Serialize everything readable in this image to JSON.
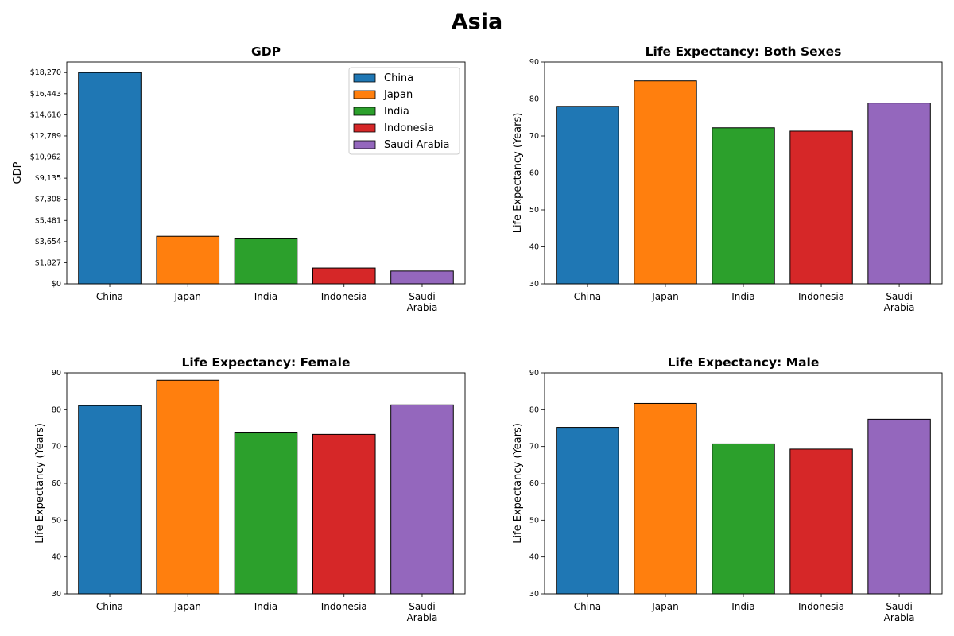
{
  "figure_title": "Asia",
  "colors": [
    "#1f77b4",
    "#ff7f0e",
    "#2ca02c",
    "#d62728",
    "#9467bd"
  ],
  "chart_data": [
    {
      "type": "bar",
      "title": "GDP",
      "xlabel": "",
      "ylabel": "GDP",
      "categories": [
        "China",
        "Japan",
        "India",
        "Indonesia",
        "Saudi Arabia"
      ],
      "category_labels": [
        [
          "China"
        ],
        [
          "Japan"
        ],
        [
          "India"
        ],
        [
          "Indonesia"
        ],
        [
          "Saudi",
          "Arabia"
        ]
      ],
      "values": [
        18270,
        4110,
        3890,
        1370,
        1110
      ],
      "ylim": [
        0,
        19180
      ],
      "yticks": [
        0,
        1827,
        3654,
        5481,
        7308,
        9135,
        10962,
        12789,
        14616,
        16443,
        18270
      ],
      "ytick_labels": [
        "$0",
        "$1,827",
        "$3,654",
        "$5,481",
        "$7,308",
        "$9,135",
        "$10,962",
        "$12,789",
        "$14,616",
        "$16,443",
        "$18,270"
      ],
      "legend": [
        "China",
        "Japan",
        "India",
        "Indonesia",
        "Saudi Arabia"
      ],
      "legend_position": "top-right",
      "grid": false
    },
    {
      "type": "bar",
      "title": "Life Expectancy: Both Sexes",
      "xlabel": "",
      "ylabel": "Life Expectancy (Years)",
      "categories": [
        "China",
        "Japan",
        "India",
        "Indonesia",
        "Saudi Arabia"
      ],
      "category_labels": [
        [
          "China"
        ],
        [
          "Japan"
        ],
        [
          "India"
        ],
        [
          "Indonesia"
        ],
        [
          "Saudi",
          "Arabia"
        ]
      ],
      "values": [
        78.0,
        84.9,
        72.2,
        71.3,
        78.9
      ],
      "ylim": [
        30,
        90
      ],
      "yticks": [
        30,
        40,
        50,
        60,
        70,
        80,
        90
      ],
      "ytick_labels": [
        "30",
        "40",
        "50",
        "60",
        "70",
        "80",
        "90"
      ],
      "grid": false
    },
    {
      "type": "bar",
      "title": "Life Expectancy: Female",
      "xlabel": "",
      "ylabel": "Life Expectancy (Years)",
      "categories": [
        "China",
        "Japan",
        "India",
        "Indonesia",
        "Saudi Arabia"
      ],
      "category_labels": [
        [
          "China"
        ],
        [
          "Japan"
        ],
        [
          "India"
        ],
        [
          "Indonesia"
        ],
        [
          "Saudi",
          "Arabia"
        ]
      ],
      "values": [
        81.1,
        88.0,
        73.7,
        73.3,
        81.3
      ],
      "ylim": [
        30,
        90
      ],
      "yticks": [
        30,
        40,
        50,
        60,
        70,
        80,
        90
      ],
      "ytick_labels": [
        "30",
        "40",
        "50",
        "60",
        "70",
        "80",
        "90"
      ],
      "grid": false
    },
    {
      "type": "bar",
      "title": "Life Expectancy: Male",
      "xlabel": "",
      "ylabel": "Life Expectancy (Years)",
      "categories": [
        "China",
        "Japan",
        "India",
        "Indonesia",
        "Saudi Arabia"
      ],
      "category_labels": [
        [
          "China"
        ],
        [
          "Japan"
        ],
        [
          "India"
        ],
        [
          "Indonesia"
        ],
        [
          "Saudi",
          "Arabia"
        ]
      ],
      "values": [
        75.2,
        81.7,
        70.7,
        69.3,
        77.4
      ],
      "ylim": [
        30,
        90
      ],
      "yticks": [
        30,
        40,
        50,
        60,
        70,
        80,
        90
      ],
      "ytick_labels": [
        "30",
        "40",
        "50",
        "60",
        "70",
        "80",
        "90"
      ],
      "grid": false
    }
  ]
}
